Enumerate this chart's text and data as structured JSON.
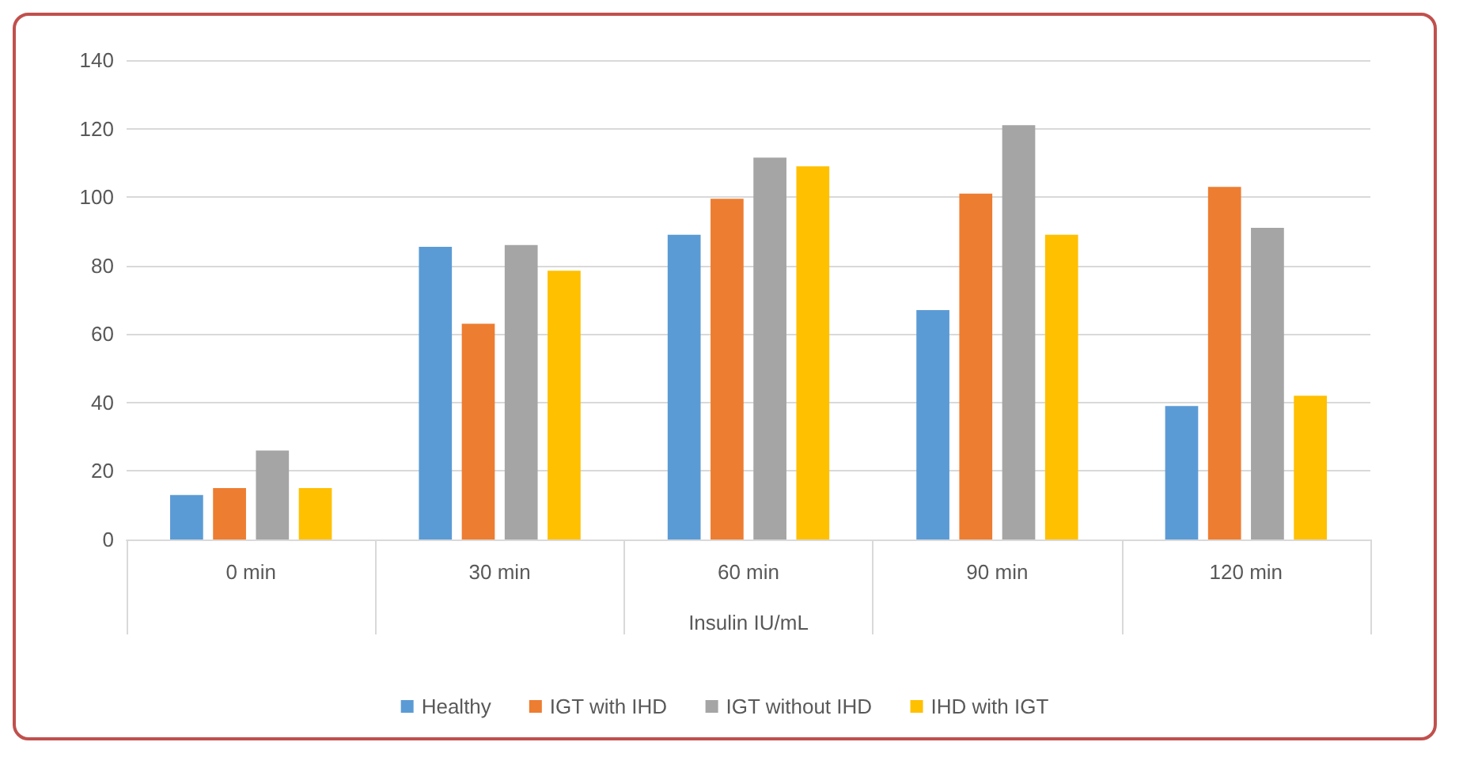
{
  "chart_data": {
    "type": "bar",
    "categories": [
      "0 min",
      "30 min",
      "60 min",
      "90 min",
      "120 min"
    ],
    "xlabel": "Insulin IU/mL",
    "series": [
      {
        "name": "Healthy",
        "color": "#5b9bd5",
        "values": [
          13,
          85.5,
          89,
          67,
          39
        ]
      },
      {
        "name": "IGT with IHD",
        "color": "#ed7d31",
        "values": [
          15,
          63,
          99.5,
          101,
          103
        ]
      },
      {
        "name": "IGT without IHD",
        "color": "#a5a5a5",
        "values": [
          26,
          86,
          111.5,
          121,
          91
        ]
      },
      {
        "name": "IHD with IGT",
        "color": "#ffc000",
        "values": [
          15,
          78.5,
          109,
          89,
          42
        ]
      }
    ],
    "ylim": [
      0,
      140
    ],
    "yticks": [
      0,
      20,
      40,
      60,
      80,
      100,
      120,
      140
    ],
    "grid": "y",
    "legend": "bottom"
  }
}
